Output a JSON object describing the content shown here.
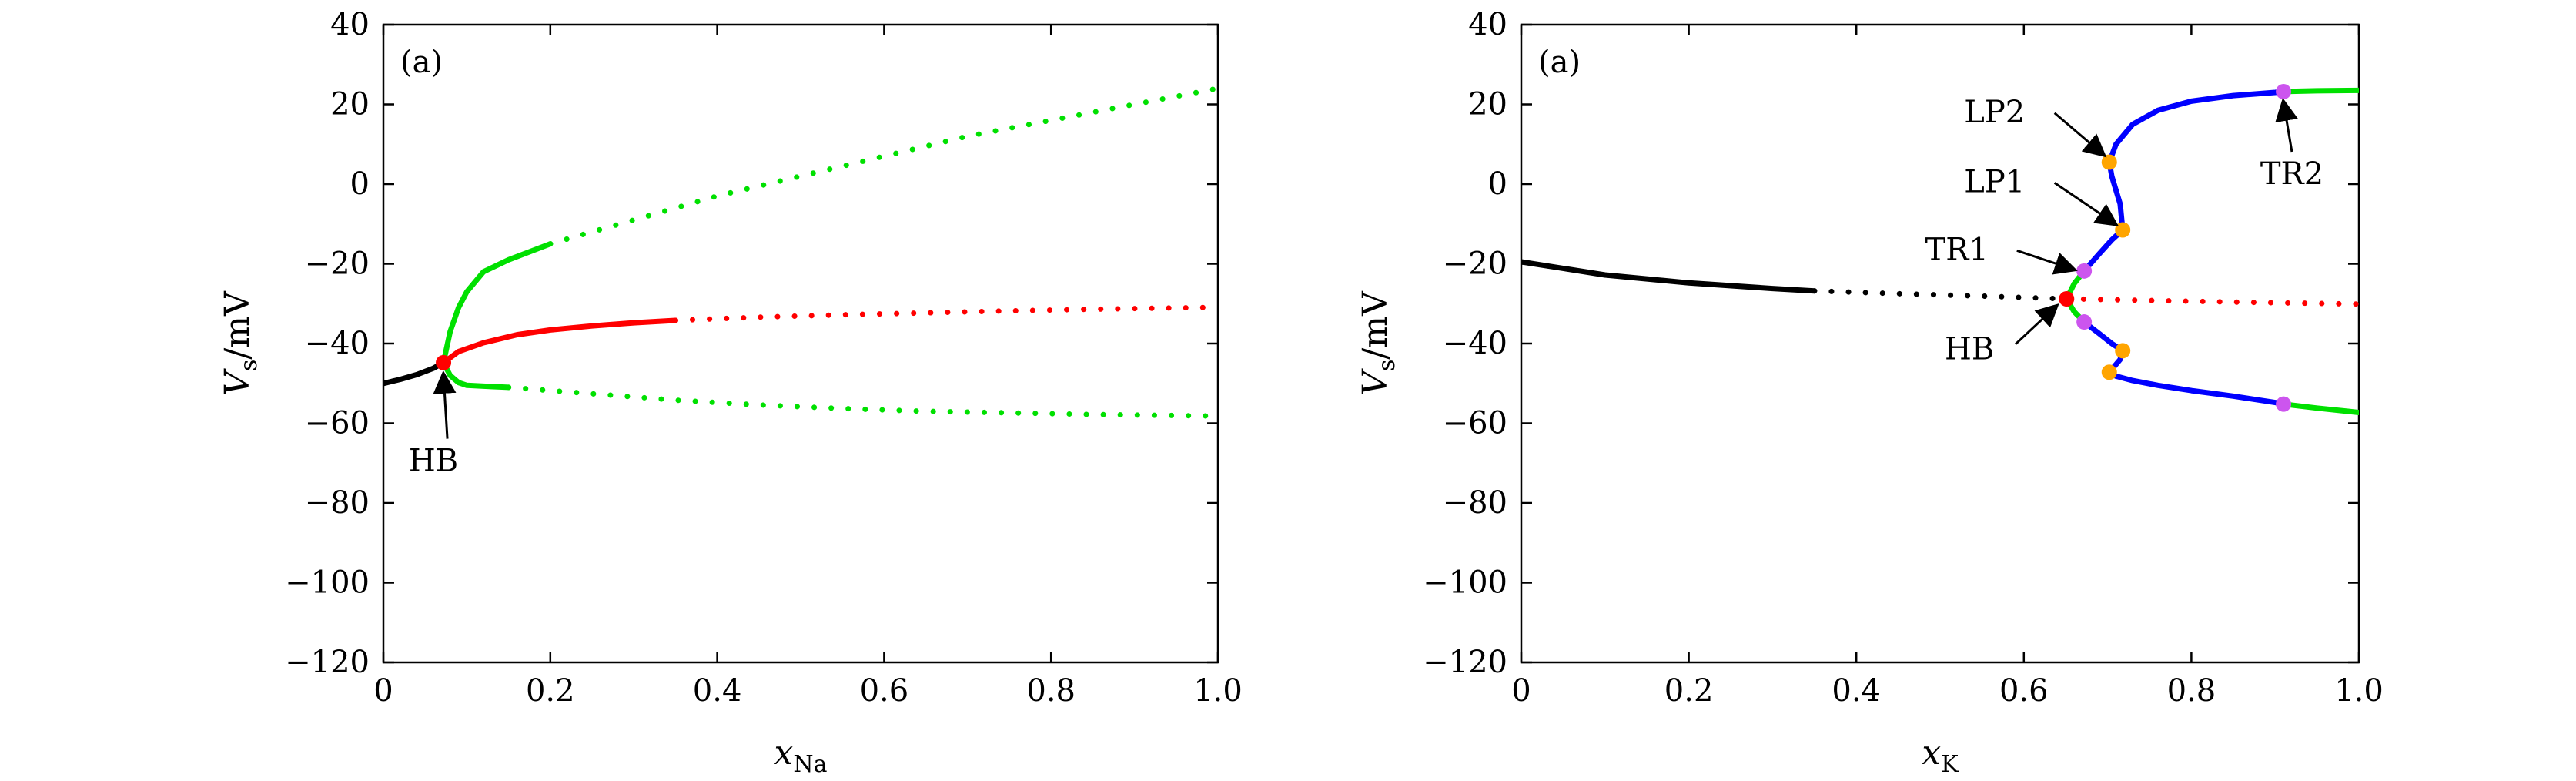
{
  "chart_data": [
    {
      "type": "scatter",
      "panel_label": "(a)",
      "xlabel": "x",
      "xlabel_sub": "Na",
      "ylabel": "V",
      "ylabel_sub": "s",
      "ylabel_unit": "/mV",
      "xlim": [
        0,
        1.0
      ],
      "ylim": [
        -120,
        40
      ],
      "xticks": [
        "0",
        "0.2",
        "0.4",
        "0.6",
        "0.8",
        "1.0"
      ],
      "yticks": [
        "40",
        "20",
        "0",
        "−20",
        "−40",
        "−60",
        "−80",
        "−100",
        "−120"
      ],
      "grid": false,
      "legend": "none",
      "colors": {
        "stable_eq": "#000000",
        "unstable_eq": "#ff0000",
        "cycle": "#00e000",
        "hopf": "#ff0000"
      },
      "series": [
        {
          "style": "stable-equilibrium",
          "color": "#000000",
          "x": [
            0,
            0.02,
            0.04,
            0.06,
            0.072
          ],
          "y": [
            -50,
            -49,
            -47.8,
            -46.2,
            -44.8
          ],
          "line": "solid"
        },
        {
          "style": "unstable-equilibrium",
          "color": "#ff0000",
          "x": [
            0.072,
            0.09,
            0.12,
            0.16,
            0.2,
            0.25,
            0.3,
            0.35
          ],
          "y": [
            -44.8,
            -42,
            -39.8,
            -37.8,
            -36.6,
            -35.6,
            -34.8,
            -34.2
          ],
          "line": "solid"
        },
        {
          "style": "unstable-equilibrium",
          "color": "#ff0000",
          "x": [
            0.35,
            0.45,
            0.55,
            0.65,
            0.75,
            0.85,
            1.0
          ],
          "y": [
            -34.2,
            -33.4,
            -32.8,
            -32.3,
            -31.8,
            -31.4,
            -30.9
          ],
          "line": "dotted"
        },
        {
          "style": "periodic-max",
          "color": "#00e000",
          "x": [
            0.072,
            0.08,
            0.09,
            0.1,
            0.12,
            0.15,
            0.2
          ],
          "y": [
            -44.8,
            -37,
            -31,
            -27,
            -22,
            -19,
            -15
          ],
          "line": "solid"
        },
        {
          "style": "periodic-max",
          "color": "#00e000",
          "x": [
            0.2,
            0.3,
            0.4,
            0.5,
            0.6,
            0.7,
            0.8,
            0.9,
            1.0
          ],
          "y": [
            -15,
            -9,
            -3,
            2,
            7,
            12,
            16,
            20,
            24
          ],
          "line": "dotted"
        },
        {
          "style": "periodic-min",
          "color": "#00e000",
          "x": [
            0.072,
            0.08,
            0.09,
            0.1,
            0.12,
            0.15
          ],
          "y": [
            -44.8,
            -48,
            -49.8,
            -50.5,
            -50.7,
            -51
          ],
          "line": "solid"
        },
        {
          "style": "periodic-min",
          "color": "#00e000",
          "x": [
            0.15,
            0.25,
            0.35,
            0.45,
            0.55,
            0.65,
            0.75,
            0.85,
            1.0
          ],
          "y": [
            -51,
            -52.6,
            -54.2,
            -55.4,
            -56.3,
            -57,
            -57.4,
            -57.8,
            -58.2
          ],
          "line": "dotted"
        }
      ],
      "points": [
        {
          "label": "HB",
          "x": 0.072,
          "y": -44.8,
          "color": "#ff0000"
        }
      ],
      "annotations": [
        {
          "text": "HB",
          "x": 0.06,
          "y": -72
        }
      ]
    },
    {
      "type": "scatter",
      "panel_label": "(a)",
      "xlabel": "x",
      "xlabel_sub": "K",
      "ylabel": "V",
      "ylabel_sub": "s",
      "ylabel_unit": "/mV",
      "xlim": [
        0,
        1.0
      ],
      "ylim": [
        -120,
        40
      ],
      "xticks": [
        "0",
        "0.2",
        "0.4",
        "0.6",
        "0.8",
        "1.0"
      ],
      "yticks": [
        "40",
        "20",
        "0",
        "−20",
        "−40",
        "−60",
        "−80",
        "−100",
        "−120"
      ],
      "grid": false,
      "legend": "none",
      "colors": {
        "stable_eq": "#000000",
        "unstable_eq": "#ff0000",
        "stable_cycle": "#00e000",
        "unstable_cycle": "#0000ff",
        "limit_point": "#ffa500",
        "torus": "#cc55ee"
      },
      "series": [
        {
          "style": "stable-equilibrium",
          "color": "#000000",
          "x": [
            0,
            0.1,
            0.2,
            0.3,
            0.35
          ],
          "y": [
            -19.5,
            -22.8,
            -24.8,
            -26.2,
            -26.8
          ],
          "line": "solid"
        },
        {
          "style": "stable-equilibrium",
          "color": "#000000",
          "x": [
            0.35,
            0.45,
            0.55,
            0.62,
            0.651
          ],
          "y": [
            -26.8,
            -27.5,
            -28.1,
            -28.6,
            -28.8
          ],
          "line": "dotted"
        },
        {
          "style": "unstable-equilibrium",
          "color": "#ff0000",
          "x": [
            0.651,
            0.75,
            0.85,
            1.0
          ],
          "y": [
            -28.8,
            -29.2,
            -29.6,
            -30.1
          ],
          "line": "dotted"
        },
        {
          "style": "stable-cycle-max",
          "color": "#00e000",
          "x": [
            0.651,
            0.66,
            0.672
          ],
          "y": [
            -28.8,
            -25,
            -21.8
          ],
          "line": "solid"
        },
        {
          "style": "unstable-cycle-max",
          "color": "#0000ff",
          "x": [
            0.672,
            0.69,
            0.705,
            0.718,
            0.715,
            0.705,
            0.702,
            0.71,
            0.73,
            0.76,
            0.8,
            0.85,
            0.9,
            0.91
          ],
          "y": [
            -21.8,
            -17.5,
            -14,
            -11.5,
            -5,
            2,
            5.5,
            10,
            15,
            18.5,
            20.8,
            22.2,
            23,
            23.2
          ],
          "line": "solid"
        },
        {
          "style": "stable-cycle-max",
          "color": "#00e000",
          "x": [
            0.91,
            0.95,
            1.0
          ],
          "y": [
            23.2,
            23.4,
            23.5
          ],
          "line": "solid"
        },
        {
          "style": "stable-cycle-min",
          "color": "#00e000",
          "x": [
            0.651,
            0.66,
            0.672
          ],
          "y": [
            -28.8,
            -32,
            -34.6
          ],
          "line": "solid"
        },
        {
          "style": "unstable-cycle-min",
          "color": "#0000ff",
          "x": [
            0.672,
            0.69,
            0.705,
            0.718,
            0.715,
            0.705,
            0.702,
            0.71,
            0.73,
            0.76,
            0.8,
            0.85,
            0.9,
            0.91
          ],
          "y": [
            -34.6,
            -37.5,
            -40,
            -41.8,
            -44,
            -46.5,
            -47.2,
            -48.2,
            -49.3,
            -50.5,
            -51.8,
            -53.2,
            -54.8,
            -55.2
          ],
          "line": "solid"
        },
        {
          "style": "stable-cycle-min",
          "color": "#00e000",
          "x": [
            0.91,
            0.95,
            1.0
          ],
          "y": [
            -55.2,
            -56.2,
            -57.3
          ],
          "line": "solid"
        }
      ],
      "points": [
        {
          "label": "HB",
          "x": 0.651,
          "y": -28.8,
          "color": "#ff0000"
        },
        {
          "label": "TR1",
          "x": 0.672,
          "y": -21.8,
          "color": "#cc55ee"
        },
        {
          "label": "TR1-min",
          "x": 0.672,
          "y": -34.6,
          "color": "#cc55ee"
        },
        {
          "label": "LP1",
          "x": 0.718,
          "y": -11.5,
          "color": "#ffa500"
        },
        {
          "label": "LP1-min",
          "x": 0.718,
          "y": -41.8,
          "color": "#ffa500"
        },
        {
          "label": "LP2",
          "x": 0.702,
          "y": 5.5,
          "color": "#ffa500"
        },
        {
          "label": "LP2-min",
          "x": 0.702,
          "y": -47.2,
          "color": "#ffa500"
        },
        {
          "label": "TR2",
          "x": 0.91,
          "y": 23.2,
          "color": "#cc55ee"
        },
        {
          "label": "TR2-min",
          "x": 0.91,
          "y": -55.2,
          "color": "#cc55ee"
        }
      ],
      "annotations": [
        {
          "text": "LP2",
          "x": 0.565,
          "y": 15.5,
          "target": "LP2"
        },
        {
          "text": "LP1",
          "x": 0.565,
          "y": -2,
          "target": "LP1"
        },
        {
          "text": "TR1",
          "x": 0.52,
          "y": -19,
          "target": "TR1"
        },
        {
          "text": "HB",
          "x": 0.535,
          "y": -44,
          "target": "HB"
        },
        {
          "text": "TR2",
          "x": 0.92,
          "y": 0,
          "target": "TR2"
        }
      ]
    }
  ]
}
